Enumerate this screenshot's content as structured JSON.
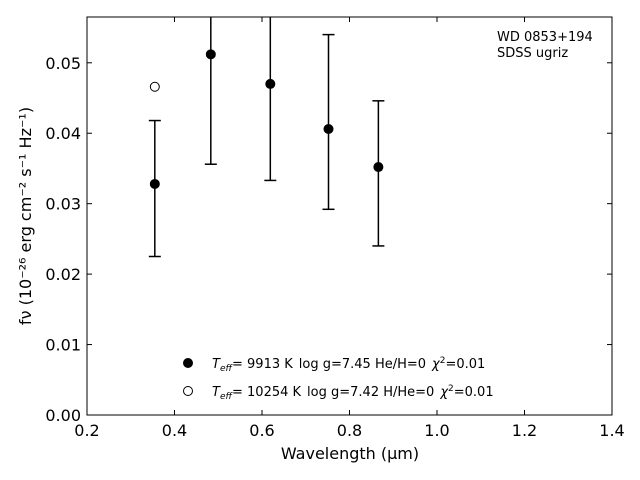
{
  "chart_data": {
    "type": "scatter",
    "xlabel": "Wavelength (μm)",
    "ylabel": "fν (10⁻²⁶ erg cm⁻² s⁻¹ Hz⁻¹)",
    "xlim": [
      0.2,
      1.4
    ],
    "ylim": [
      0.0,
      0.0565
    ],
    "xticks": [
      "0.2",
      "0.4",
      "0.6",
      "0.8",
      "1.0",
      "1.2",
      "1.4"
    ],
    "yticks": [
      "0.00",
      "0.01",
      "0.02",
      "0.03",
      "0.04",
      "0.05"
    ],
    "annotation": [
      "WD 0853+194",
      "SDSS ugriz"
    ],
    "observed": [
      {
        "x": 0.355,
        "y": 0.0328,
        "ylo": 0.0225,
        "yhi": 0.0418
      },
      {
        "x": 0.483,
        "y": 0.0512,
        "ylo": 0.0356,
        "yhi": 0.0565
      },
      {
        "x": 0.619,
        "y": 0.047,
        "ylo": 0.0333,
        "yhi": 0.0565
      },
      {
        "x": 0.752,
        "y": 0.0406,
        "ylo": 0.0292,
        "yhi": 0.054
      },
      {
        "x": 0.866,
        "y": 0.0352,
        "ylo": 0.024,
        "yhi": 0.0446
      }
    ],
    "models": [
      {
        "marker": "filled",
        "teff_value": "=  9913 K",
        "rest": "log g=7.45  He/H=0",
        "chi_value": "=0.01",
        "points": [
          {
            "x": 0.355,
            "y": 0.0328
          },
          {
            "x": 0.483,
            "y": 0.0512
          },
          {
            "x": 0.619,
            "y": 0.047
          },
          {
            "x": 0.752,
            "y": 0.0406
          },
          {
            "x": 0.866,
            "y": 0.0352
          }
        ]
      },
      {
        "marker": "open",
        "teff_value": "= 10254 K",
        "rest": "log g=7.42  H/He=0",
        "chi_value": "=0.01",
        "points": [
          {
            "x": 0.355,
            "y": 0.0466
          }
        ]
      }
    ]
  }
}
